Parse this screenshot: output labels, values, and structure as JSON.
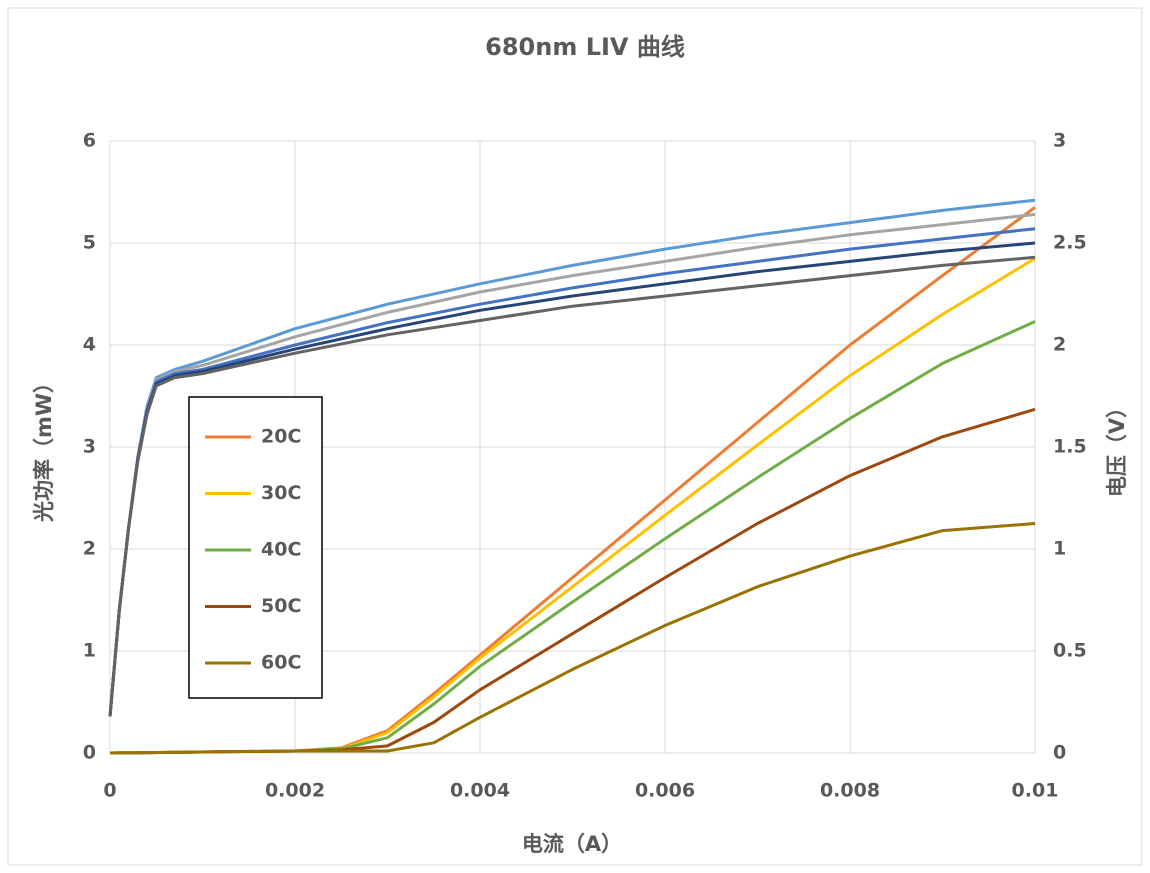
{
  "chart_data": {
    "type": "line",
    "title": "680nm LIV 曲线",
    "x_label": "电流（A）",
    "y_label": "光功率（mW）",
    "y2_label": "电压（V）",
    "x": [
      0,
      0.001,
      0.002,
      0.0025,
      0.003,
      0.0035,
      0.004,
      0.005,
      0.006,
      0.007,
      0.008,
      0.009,
      0.01
    ],
    "series": [
      {
        "name": "20C",
        "color": "#ed7d31",
        "values": [
          0,
          0.01,
          0.02,
          0.05,
          0.22,
          0.58,
          0.96,
          1.72,
          2.48,
          3.24,
          4.0,
          4.68,
          5.35
        ]
      },
      {
        "name": "30C",
        "color": "#ffc000",
        "values": [
          0,
          0.01,
          0.02,
          0.04,
          0.2,
          0.55,
          0.93,
          1.63,
          2.33,
          3.02,
          3.7,
          4.3,
          4.85
        ]
      },
      {
        "name": "40C",
        "color": "#70ad47",
        "values": [
          0,
          0.01,
          0.02,
          0.04,
          0.15,
          0.48,
          0.85,
          1.48,
          2.1,
          2.7,
          3.28,
          3.82,
          4.23
        ]
      },
      {
        "name": "50C",
        "color": "#9e480e",
        "values": [
          0,
          0.01,
          0.02,
          0.03,
          0.07,
          0.3,
          0.62,
          1.17,
          1.72,
          2.25,
          2.72,
          3.1,
          3.37
        ]
      },
      {
        "name": "60C",
        "color": "#997300",
        "values": [
          0,
          0.01,
          0.02,
          0.02,
          0.02,
          0.1,
          0.35,
          0.82,
          1.25,
          1.63,
          1.93,
          2.18,
          2.25
        ]
      },
      {
        "axis": "y2",
        "color": "#5b9bd5",
        "x": [
          0,
          0.0001,
          0.0002,
          0.0003,
          0.0004,
          0.0005,
          0.0007,
          0.001,
          0.002,
          0.003,
          0.004,
          0.005,
          0.006,
          0.007,
          0.008,
          0.009,
          0.01
        ],
        "values": [
          0.18,
          0.7,
          1.1,
          1.45,
          1.7,
          1.84,
          1.88,
          1.92,
          2.08,
          2.2,
          2.3,
          2.39,
          2.47,
          2.54,
          2.6,
          2.66,
          2.71
        ]
      },
      {
        "axis": "y2",
        "color": "#a5a5a5",
        "x": [
          0,
          0.0001,
          0.0002,
          0.0003,
          0.0004,
          0.0005,
          0.0007,
          0.001,
          0.002,
          0.003,
          0.004,
          0.005,
          0.006,
          0.007,
          0.008,
          0.009,
          0.01
        ],
        "values": [
          0.18,
          0.7,
          1.1,
          1.45,
          1.69,
          1.83,
          1.87,
          1.9,
          2.04,
          2.16,
          2.26,
          2.34,
          2.41,
          2.48,
          2.54,
          2.59,
          2.64
        ]
      },
      {
        "axis": "y2",
        "color": "#4472c4",
        "x": [
          0,
          0.0001,
          0.0002,
          0.0003,
          0.0004,
          0.0005,
          0.0007,
          0.001,
          0.002,
          0.003,
          0.004,
          0.005,
          0.006,
          0.007,
          0.008,
          0.009,
          0.01
        ],
        "values": [
          0.18,
          0.7,
          1.1,
          1.44,
          1.68,
          1.82,
          1.86,
          1.88,
          2.0,
          2.11,
          2.2,
          2.28,
          2.35,
          2.41,
          2.47,
          2.52,
          2.57
        ]
      },
      {
        "axis": "y2",
        "color": "#264478",
        "x": [
          0,
          0.0001,
          0.0002,
          0.0003,
          0.0004,
          0.0005,
          0.0007,
          0.001,
          0.002,
          0.003,
          0.004,
          0.005,
          0.006,
          0.007,
          0.008,
          0.009,
          0.01
        ],
        "values": [
          0.18,
          0.7,
          1.1,
          1.44,
          1.67,
          1.81,
          1.85,
          1.87,
          1.98,
          2.08,
          2.17,
          2.24,
          2.3,
          2.36,
          2.41,
          2.46,
          2.5
        ]
      },
      {
        "axis": "y2",
        "color": "#636363",
        "x": [
          0,
          0.0001,
          0.0002,
          0.0003,
          0.0004,
          0.0005,
          0.0007,
          0.001,
          0.002,
          0.003,
          0.004,
          0.005,
          0.006,
          0.007,
          0.008,
          0.009,
          0.01
        ],
        "values": [
          0.18,
          0.7,
          1.1,
          1.43,
          1.66,
          1.8,
          1.84,
          1.86,
          1.96,
          2.05,
          2.12,
          2.19,
          2.24,
          2.29,
          2.34,
          2.39,
          2.43
        ]
      }
    ],
    "xlim": [
      0,
      0.01
    ],
    "xticks": [
      0,
      0.002,
      0.004,
      0.006,
      0.008,
      0.01
    ],
    "ylim": [
      0,
      6
    ],
    "yticks": [
      0,
      1,
      2,
      3,
      4,
      5,
      6
    ],
    "y2lim": [
      0,
      3
    ],
    "y2ticks": [
      0,
      0.5,
      1,
      1.5,
      2,
      2.5,
      3
    ],
    "grid": true,
    "legend_position": "left"
  }
}
